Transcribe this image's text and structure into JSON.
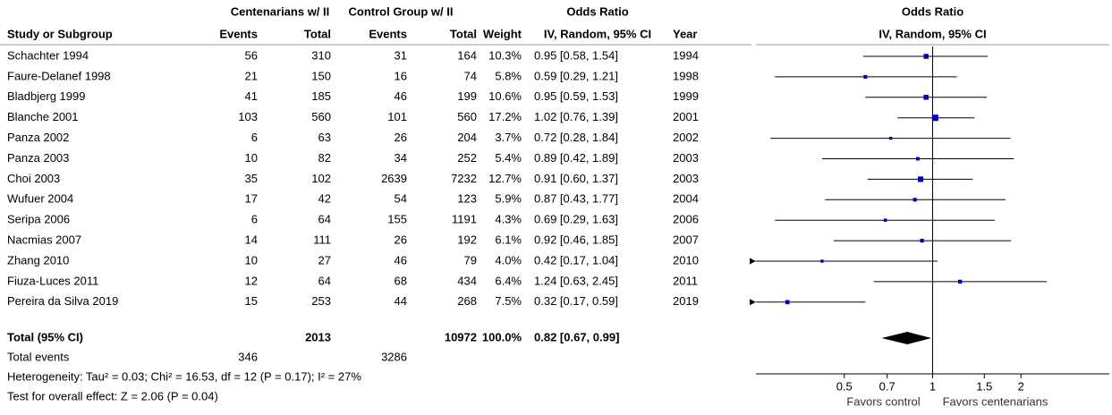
{
  "table": {
    "group_headers": [
      "Centenarians w/ II",
      "Control Group w/ II",
      "Odds Ratio"
    ],
    "columns": [
      "Study or Subgroup",
      "Events",
      "Total",
      "Events",
      "Total",
      "Weight",
      "IV, Random, 95% CI",
      "Year"
    ],
    "rows": [
      [
        "Schachter 1994",
        56,
        310,
        31,
        164,
        "10.3%",
        "0.95 [0.58, 1.54]",
        1994
      ],
      [
        "Faure-Delanef 1998",
        21,
        150,
        16,
        74,
        "5.8%",
        "0.59 [0.29, 1.21]",
        1998
      ],
      [
        "Bladbjerg 1999",
        41,
        185,
        46,
        199,
        "10.6%",
        "0.95 [0.59, 1.53]",
        1999
      ],
      [
        "Blanche 2001",
        103,
        560,
        101,
        560,
        "17.2%",
        "1.02 [0.76, 1.39]",
        2001
      ],
      [
        "Panza 2002",
        6,
        63,
        26,
        204,
        "3.7%",
        "0.72 [0.28, 1.84]",
        2002
      ],
      [
        "Panza 2003",
        10,
        82,
        34,
        252,
        "5.4%",
        "0.89 [0.42, 1.89]",
        2003
      ],
      [
        "Choi 2003",
        35,
        102,
        2639,
        7232,
        "12.7%",
        "0.91 [0.60, 1.37]",
        2003
      ],
      [
        "Wufuer 2004",
        17,
        42,
        54,
        123,
        "5.9%",
        "0.87 [0.43, 1.77]",
        2004
      ],
      [
        "Seripa 2006",
        6,
        64,
        155,
        1191,
        "4.3%",
        "0.69 [0.29, 1.63]",
        2006
      ],
      [
        "Nacmias 2007",
        14,
        111,
        26,
        192,
        "6.1%",
        "0.92 [0.46, 1.85]",
        2007
      ],
      [
        "Zhang 2010",
        10,
        27,
        46,
        79,
        "4.0%",
        "0.42 [0.17, 1.04]",
        2010
      ],
      [
        "Fiuza-Luces 2011",
        12,
        64,
        68,
        434,
        "6.4%",
        "1.24 [0.63, 2.45]",
        2011
      ],
      [
        "Pereira da Silva 2019",
        15,
        253,
        44,
        268,
        "7.5%",
        "0.32 [0.17, 0.59]",
        2019
      ]
    ],
    "total": {
      "label": "Total (95% CI)",
      "total1": 2013,
      "total2": 10972,
      "weight": "100.0%",
      "ci": "0.82 [0.67, 0.99]"
    },
    "total_events": {
      "label": "Total events",
      "events1": 346,
      "events2": 3286
    },
    "heterogeneity": "Heterogeneity: Tau² = 0.03; Chi² = 16.53, df = 12 (P = 0.17); I² = 27%",
    "overall": "Test for overall effect: Z = 2.06 (P = 0.04)"
  },
  "chart_data": {
    "type": "forest",
    "title": "Odds Ratio",
    "subtitle": "IV, Random, 95% CI",
    "or": [
      0.95,
      0.59,
      0.95,
      1.02,
      0.72,
      0.89,
      0.91,
      0.87,
      0.69,
      0.92,
      0.42,
      1.24,
      0.32
    ],
    "ci_low": [
      0.58,
      0.29,
      0.59,
      0.76,
      0.28,
      0.42,
      0.6,
      0.43,
      0.29,
      0.46,
      0.17,
      0.63,
      0.17
    ],
    "ci_high": [
      1.54,
      1.21,
      1.53,
      1.39,
      1.84,
      1.89,
      1.37,
      1.77,
      1.63,
      1.85,
      1.04,
      2.45,
      0.59
    ],
    "weights": [
      10.3,
      5.8,
      10.6,
      17.2,
      3.7,
      5.4,
      12.7,
      5.9,
      4.3,
      6.1,
      4.0,
      6.4,
      7.5
    ],
    "total": {
      "or": 0.82,
      "ci_low": 0.67,
      "ci_high": 0.99
    },
    "xlim": [
      0.25,
      4
    ],
    "xticks": [
      0.5,
      0.7,
      1,
      1.5,
      2
    ],
    "log_scale": true,
    "color": "#0000b4",
    "x_labels": [
      "Favors control",
      "Favors centenarians"
    ]
  }
}
